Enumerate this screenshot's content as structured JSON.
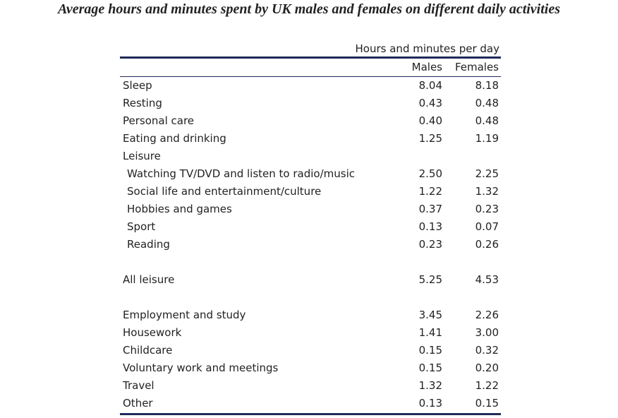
{
  "chart_data": {
    "type": "table",
    "title": "Average hours and minutes spent by UK males and females on different daily activities",
    "group_header": "Hours and minutes per day",
    "columns": [
      "Males",
      "Females"
    ],
    "rows": [
      {
        "label": "Sleep",
        "males": "8.04",
        "females": "8.18",
        "indent": false
      },
      {
        "label": "Resting",
        "males": "0.43",
        "females": "0.48",
        "indent": false
      },
      {
        "label": "Personal care",
        "males": "0.40",
        "females": "0.48",
        "indent": false
      },
      {
        "label": "Eating and drinking",
        "males": "1.25",
        "females": "1.19",
        "indent": false
      },
      {
        "label": "Leisure",
        "males": "",
        "females": "",
        "indent": false
      },
      {
        "label": "Watching TV/DVD and listen to radio/music",
        "males": "2.50",
        "females": "2.25",
        "indent": true
      },
      {
        "label": "Social life and entertainment/culture",
        "males": "1.22",
        "females": "1.32",
        "indent": true
      },
      {
        "label": "Hobbies and games",
        "males": "0.37",
        "females": "0.23",
        "indent": true
      },
      {
        "label": "Sport",
        "males": "0.13",
        "females": "0.07",
        "indent": true
      },
      {
        "label": "Reading",
        "males": "0.23",
        "females": "0.26",
        "indent": true
      },
      {
        "spacer": true
      },
      {
        "label": "All leisure",
        "males": "5.25",
        "females": "4.53",
        "indent": false
      },
      {
        "spacer": true
      },
      {
        "label": "Employment and study",
        "males": "3.45",
        "females": "2.26",
        "indent": false
      },
      {
        "label": "Housework",
        "males": "1.41",
        "females": "3.00",
        "indent": false
      },
      {
        "label": "Childcare",
        "males": "0.15",
        "females": "0.32",
        "indent": false
      },
      {
        "label": "Voluntary work and meetings",
        "males": "0.15",
        "females": "0.20",
        "indent": false
      },
      {
        "label": "Travel",
        "males": "1.32",
        "females": "1.22",
        "indent": false
      },
      {
        "label": "Other",
        "males": "0.13",
        "females": "0.15",
        "indent": false
      }
    ]
  }
}
